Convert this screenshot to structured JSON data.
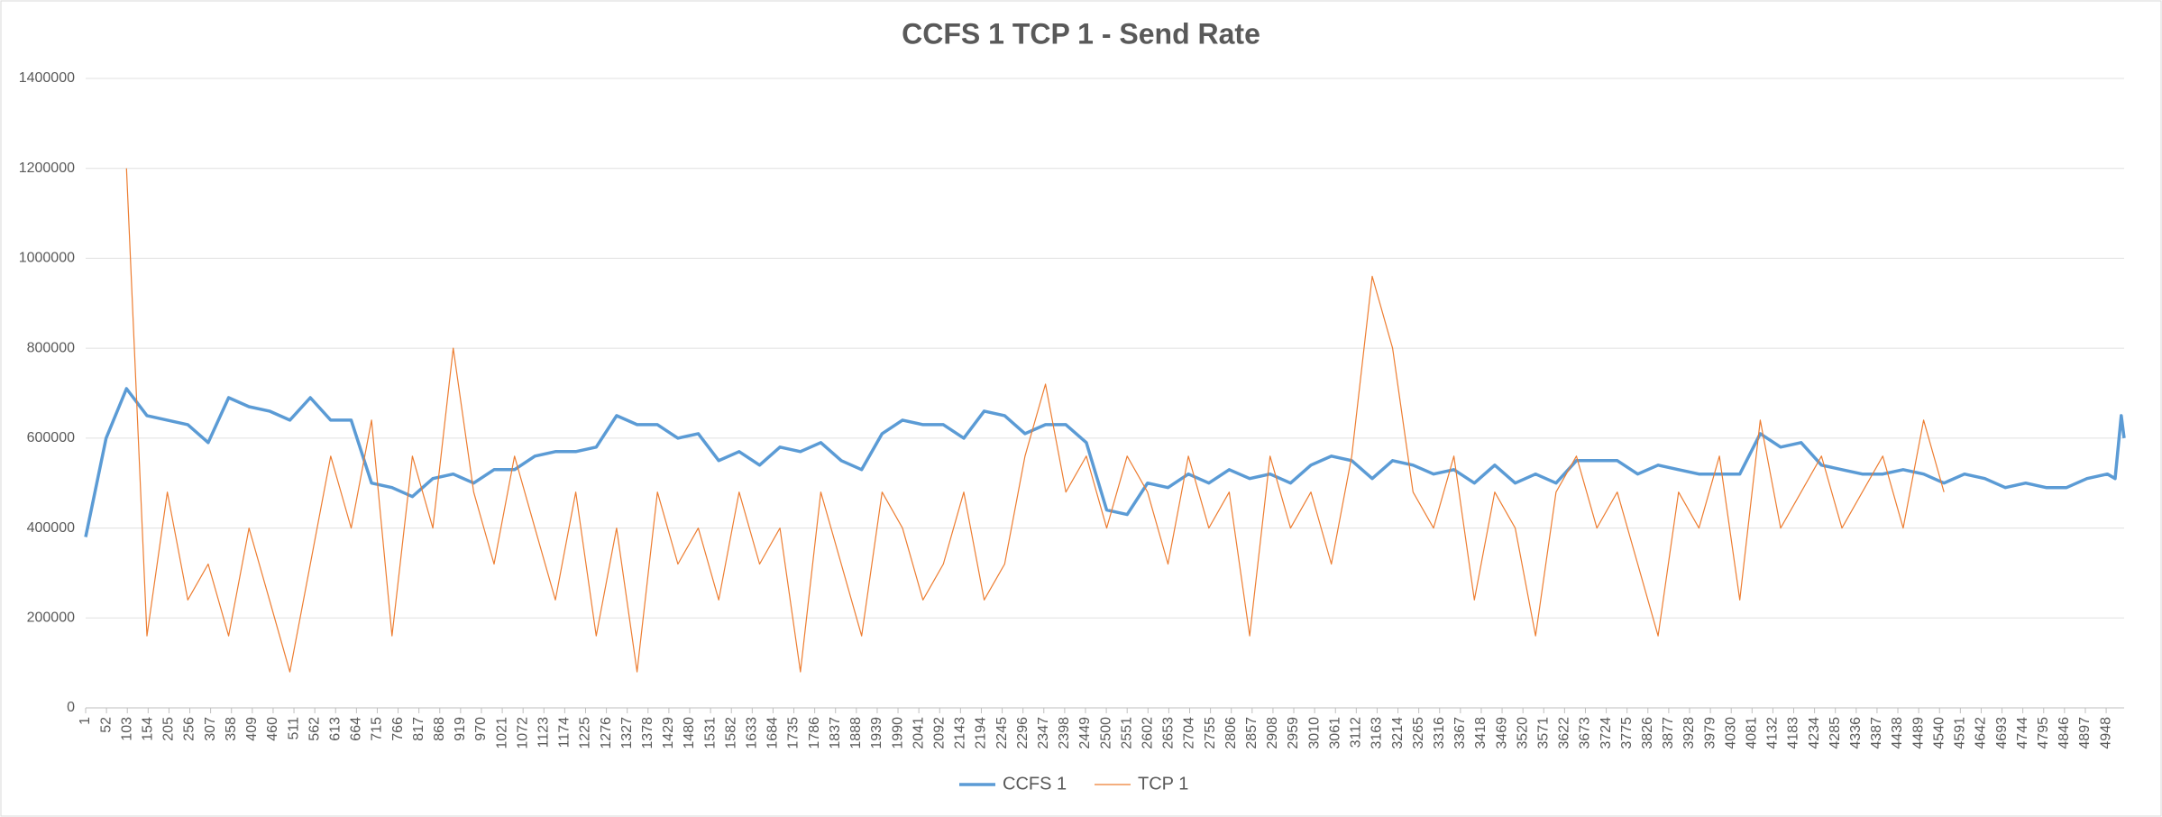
{
  "chart_data": {
    "type": "line",
    "title": "CCFS 1 TCP 1 - Send Rate",
    "x": [
      1,
      51,
      101,
      151,
      201,
      251,
      301,
      351,
      401,
      451,
      501,
      551,
      601,
      651,
      701,
      751,
      801,
      851,
      901,
      951,
      1001,
      1051,
      1101,
      1151,
      1201,
      1251,
      1301,
      1351,
      1401,
      1451,
      1501,
      1551,
      1601,
      1651,
      1701,
      1751,
      1801,
      1851,
      1901,
      1951,
      2001,
      2051,
      2101,
      2151,
      2201,
      2251,
      2301,
      2351,
      2401,
      2451,
      2501,
      2551,
      2601,
      2651,
      2701,
      2751,
      2801,
      2851,
      2901,
      2951,
      3001,
      3051,
      3101,
      3151,
      3201,
      3251,
      3301,
      3351,
      3401,
      3451,
      3501,
      3551,
      3601,
      3651,
      3701,
      3751,
      3801,
      3851,
      3901,
      3951,
      4001,
      4051,
      4101,
      4151,
      4201,
      4251,
      4301,
      4351,
      4401,
      4451,
      4501,
      4551,
      4601,
      4651,
      4701,
      4751,
      4801,
      4851,
      4901,
      4951,
      4970,
      4985,
      4992
    ],
    "series": [
      {
        "name": "CCFS 1",
        "color": "#5b9bd5",
        "width": 3.5,
        "values": [
          380000,
          600000,
          710000,
          650000,
          640000,
          630000,
          590000,
          690000,
          670000,
          660000,
          640000,
          690000,
          640000,
          640000,
          500000,
          490000,
          470000,
          510000,
          520000,
          500000,
          530000,
          530000,
          560000,
          570000,
          570000,
          580000,
          650000,
          630000,
          630000,
          600000,
          610000,
          550000,
          570000,
          540000,
          580000,
          570000,
          590000,
          550000,
          530000,
          610000,
          640000,
          630000,
          630000,
          600000,
          660000,
          650000,
          610000,
          630000,
          630000,
          590000,
          440000,
          430000,
          500000,
          490000,
          520000,
          500000,
          530000,
          510000,
          520000,
          500000,
          540000,
          560000,
          550000,
          510000,
          550000,
          540000,
          520000,
          530000,
          500000,
          540000,
          500000,
          520000,
          500000,
          550000,
          550000,
          550000,
          520000,
          540000,
          530000,
          520000,
          520000,
          520000,
          610000,
          580000,
          590000,
          540000,
          530000,
          520000,
          520000,
          530000,
          520000,
          500000,
          520000,
          510000,
          490000,
          500000,
          490000,
          490000,
          510000,
          520000,
          510000,
          650000,
          600000
        ]
      },
      {
        "name": "TCP 1",
        "color": "#ed7d31",
        "width": 1.2,
        "values": [
          null,
          null,
          1200000,
          160000,
          480000,
          240000,
          320000,
          160000,
          400000,
          240000,
          80000,
          320000,
          560000,
          400000,
          640000,
          160000,
          560000,
          400000,
          800000,
          480000,
          320000,
          560000,
          400000,
          240000,
          480000,
          160000,
          400000,
          80000,
          480000,
          320000,
          400000,
          240000,
          480000,
          320000,
          400000,
          80000,
          480000,
          320000,
          160000,
          480000,
          400000,
          240000,
          320000,
          480000,
          240000,
          320000,
          560000,
          720000,
          480000,
          560000,
          400000,
          560000,
          480000,
          320000,
          560000,
          400000,
          480000,
          160000,
          560000,
          400000,
          480000,
          320000,
          560000,
          960000,
          800000,
          480000,
          400000,
          560000,
          240000,
          480000,
          400000,
          160000,
          480000,
          560000,
          400000,
          480000,
          320000,
          160000,
          480000,
          400000,
          560000,
          240000,
          640000,
          400000,
          480000,
          560000,
          400000,
          480000,
          560000,
          400000,
          640000,
          480000,
          null,
          null,
          null,
          null,
          null,
          null,
          null,
          null,
          null,
          null,
          null
        ]
      }
    ],
    "xlim": [
      1,
      4992
    ],
    "xticks": [
      1,
      52,
      103,
      154,
      205,
      256,
      307,
      358,
      409,
      460,
      511,
      562,
      613,
      664,
      715,
      766,
      817,
      868,
      919,
      970,
      1021,
      1072,
      1123,
      1174,
      1225,
      1276,
      1327,
      1378,
      1429,
      1480,
      1531,
      1582,
      1633,
      1684,
      1735,
      1786,
      1837,
      1888,
      1939,
      1990,
      2041,
      2092,
      2143,
      2194,
      2245,
      2296,
      2347,
      2398,
      2449,
      2500,
      2551,
      2602,
      2653,
      2704,
      2755,
      2806,
      2857,
      2908,
      2959,
      3010,
      3061,
      3112,
      3163,
      3214,
      3265,
      3316,
      3367,
      3418,
      3469,
      3520,
      3571,
      3622,
      3673,
      3724,
      3775,
      3826,
      3877,
      3928,
      3979,
      4030,
      4081,
      4132,
      4183,
      4234,
      4285,
      4336,
      4387,
      4438,
      4489,
      4540,
      4591,
      4642,
      4693,
      4744,
      4795,
      4846,
      4897,
      4948
    ],
    "ylim": [
      0,
      1400000
    ],
    "yticks": [
      0,
      200000,
      400000,
      600000,
      800000,
      1000000,
      1200000,
      1400000
    ],
    "grid": true,
    "legend": "bottom"
  }
}
